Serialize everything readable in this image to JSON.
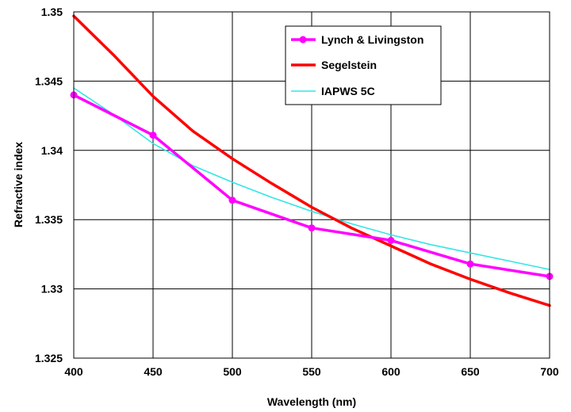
{
  "chart_data": {
    "type": "line",
    "title": "",
    "xlabel": "Wavelength (nm)",
    "ylabel": "Refractive index",
    "xlim": [
      400,
      700
    ],
    "ylim": [
      1.325,
      1.35
    ],
    "xticks": [
      400,
      450,
      500,
      550,
      600,
      650,
      700
    ],
    "yticks": [
      1.325,
      1.33,
      1.335,
      1.34,
      1.345,
      1.35
    ],
    "xtick_labels": [
      "400",
      "450",
      "500",
      "550",
      "600",
      "650",
      "700"
    ],
    "ytick_labels": [
      "1.325",
      "1.33",
      "1.335",
      "1.34",
      "1.345",
      "1.35"
    ],
    "grid": true,
    "legend_position": "top-right",
    "series": [
      {
        "name": "Lynch & Livingston",
        "color": "#ff00ff",
        "markers": true,
        "x": [
          400,
          450,
          500,
          550,
          600,
          650,
          700
        ],
        "y": [
          1.344,
          1.3411,
          1.3364,
          1.3344,
          1.3335,
          1.3318,
          1.3309
        ]
      },
      {
        "name": "Segelstein",
        "color": "#ff0000",
        "markers": false,
        "x": [
          400,
          425,
          450,
          475,
          500,
          525,
          550,
          575,
          600,
          625,
          650,
          675,
          700
        ],
        "y": [
          1.3497,
          1.3469,
          1.3439,
          1.3414,
          1.3394,
          1.3376,
          1.3359,
          1.3344,
          1.3331,
          1.3318,
          1.3307,
          1.3297,
          1.3288
        ]
      },
      {
        "name": "IAPWS 5C",
        "color": "#33e6e6",
        "markers": false,
        "x": [
          400,
          425,
          450,
          475,
          500,
          525,
          550,
          575,
          600,
          625,
          650,
          675,
          700
        ],
        "y": [
          1.3445,
          1.3426,
          1.3405,
          1.3389,
          1.3377,
          1.3366,
          1.3356,
          1.3347,
          1.3339,
          1.3332,
          1.3326,
          1.332,
          1.3314
        ]
      }
    ]
  }
}
